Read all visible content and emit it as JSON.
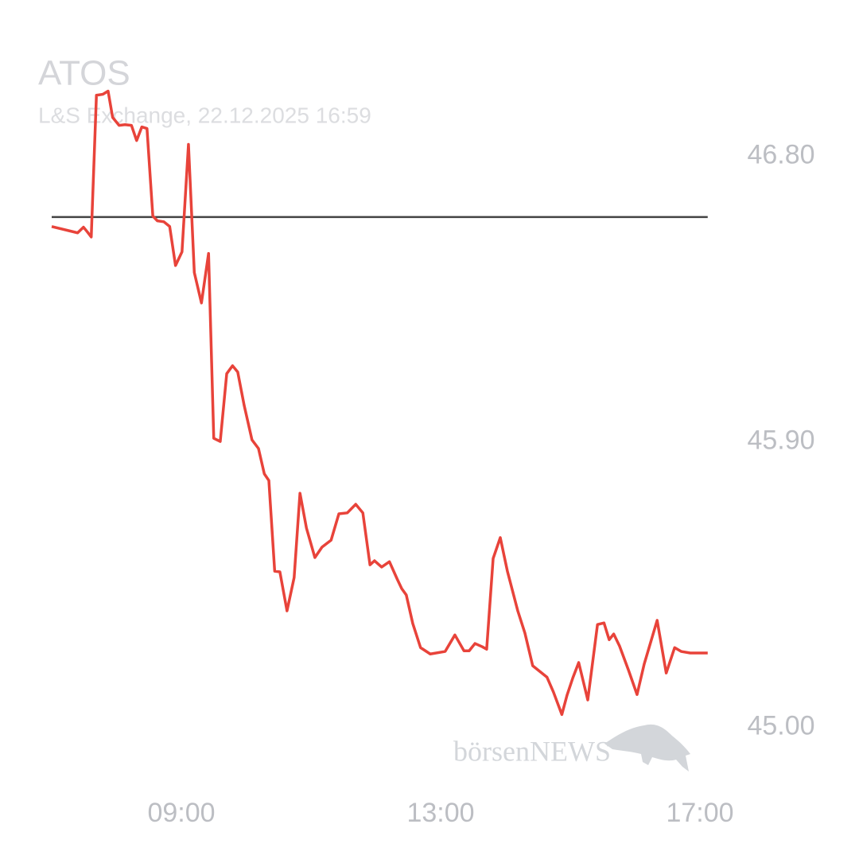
{
  "chart_data": {
    "type": "line",
    "title": "ATOS",
    "subtitle": "L&S Exchange, 22.12.2025 16:59",
    "watermark": "börsenNEWS",
    "color": "#e8433a",
    "reference_line": 46.609,
    "reference_color": "#444444",
    "grid": false,
    "xlim": [
      7,
      17.5
    ],
    "ylim": [
      44.75,
      47.05
    ],
    "xticks": [
      {
        "value": 9,
        "label": "09:00"
      },
      {
        "value": 13,
        "label": "13:00"
      },
      {
        "value": 17,
        "label": "17:00"
      }
    ],
    "yticks": [
      {
        "value": 45,
        "label": "45.00"
      },
      {
        "value": 45.9,
        "label": "45.90"
      },
      {
        "value": 46.8,
        "label": "46.80"
      }
    ],
    "x": [
      7.0,
      7.4,
      7.49,
      7.55,
      7.61,
      7.69,
      7.79,
      7.87,
      7.94,
      8.04,
      8.13,
      8.23,
      8.31,
      8.39,
      8.47,
      8.56,
      8.63,
      8.73,
      8.82,
      8.91,
      9.01,
      9.11,
      9.2,
      9.31,
      9.42,
      9.5,
      9.6,
      9.7,
      9.79,
      9.87,
      9.97,
      10.09,
      10.19,
      10.28,
      10.35,
      10.44,
      10.52,
      10.63,
      10.74,
      10.83,
      10.93,
      11.06,
      11.17,
      11.31,
      11.43,
      11.56,
      11.69,
      11.8,
      11.91,
      11.98,
      12.09,
      12.21,
      12.33,
      12.4,
      12.47,
      12.57,
      12.69,
      12.84,
      13.07,
      13.22,
      13.36,
      13.44,
      13.53,
      13.64,
      13.71,
      13.81,
      13.92,
      14.03,
      14.19,
      14.3,
      14.42,
      14.64,
      14.74,
      14.87,
      14.95,
      15.04,
      15.13,
      15.27,
      15.42,
      15.52,
      15.6,
      15.67,
      15.76,
      15.9,
      16.03,
      16.14,
      16.34,
      16.48,
      16.61,
      16.71,
      16.85,
      17.12
    ],
    "values": [
      46.579,
      46.559,
      46.577,
      46.562,
      46.546,
      46.993,
      46.996,
      47.006,
      46.923,
      46.898,
      46.9,
      46.898,
      46.85,
      46.893,
      46.888,
      46.612,
      46.597,
      46.594,
      46.579,
      46.456,
      46.499,
      46.838,
      46.434,
      46.338,
      46.494,
      45.911,
      45.901,
      46.115,
      46.14,
      46.12,
      46.014,
      45.906,
      45.879,
      45.799,
      45.778,
      45.492,
      45.49,
      45.367,
      45.472,
      45.738,
      45.628,
      45.535,
      45.568,
      45.59,
      45.673,
      45.676,
      45.703,
      45.676,
      45.512,
      45.525,
      45.505,
      45.522,
      45.467,
      45.437,
      45.417,
      45.327,
      45.251,
      45.231,
      45.239,
      45.291,
      45.241,
      45.241,
      45.264,
      45.254,
      45.246,
      45.532,
      45.598,
      45.492,
      45.367,
      45.297,
      45.194,
      45.158,
      45.111,
      45.04,
      45.101,
      45.156,
      45.204,
      45.086,
      45.324,
      45.329,
      45.276,
      45.294,
      45.256,
      45.179,
      45.103,
      45.199,
      45.337,
      45.171,
      45.251,
      45.239,
      45.234,
      45.234
    ]
  }
}
